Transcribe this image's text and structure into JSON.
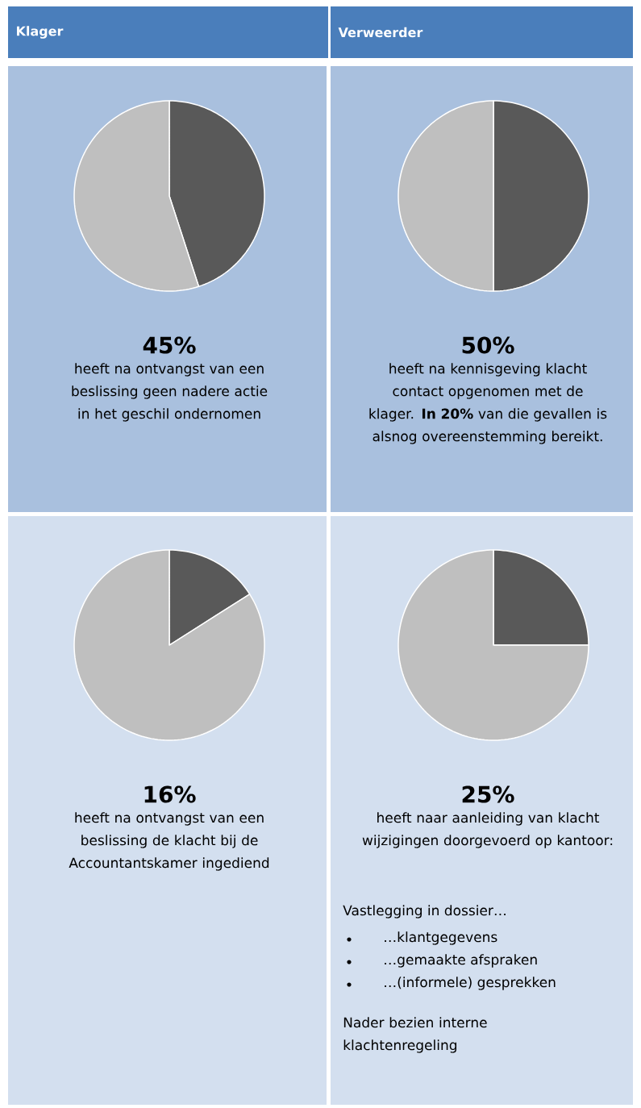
{
  "chart_data": [
    {
      "type": "pie",
      "title": "Klager",
      "categories": [
        null,
        null
      ],
      "values": [
        45,
        55
      ],
      "colors": [
        "#595959",
        "#bfbfbf"
      ],
      "annotations": [
        "45%",
        "heeft na ontvangst van een beslissing geen nadere actie in het geschil ondernomen"
      ]
    },
    {
      "type": "pie",
      "title": "Verweerder",
      "categories": [
        null,
        null
      ],
      "values": [
        50,
        50
      ],
      "colors": [
        "#595959",
        "#bfbfbf"
      ],
      "annotations": [
        "50%",
        "heeft na kennisgeving klacht contact opgenomen met de klager. **In 20%** van die gevallen is alsnog overeenstemming bereikt."
      ]
    },
    {
      "type": "pie",
      "categories": [
        null,
        null
      ],
      "values": [
        16,
        84
      ],
      "colors": [
        "#595959",
        "#bfbfbf"
      ],
      "annotations": [
        "16%",
        "heeft na ontvangst van een beslissing de klacht bij de Accountantskamer ingediend"
      ]
    },
    {
      "type": "pie",
      "categories": [
        null,
        null
      ],
      "values": [
        25,
        75
      ],
      "colors": [
        "#595959",
        "#bfbfbf"
      ],
      "annotations": [
        "25%",
        "heeft naar aanleiding van klacht wijzigingen doorgevoerd op kantoor:",
        "Vastlegging in dossier…",
        "…klantgegevens",
        "…gemaakte afspraken",
        "…(informele) gesprekken",
        "Nader bezien interne klachtenregeling"
      ]
    }
  ]
}
